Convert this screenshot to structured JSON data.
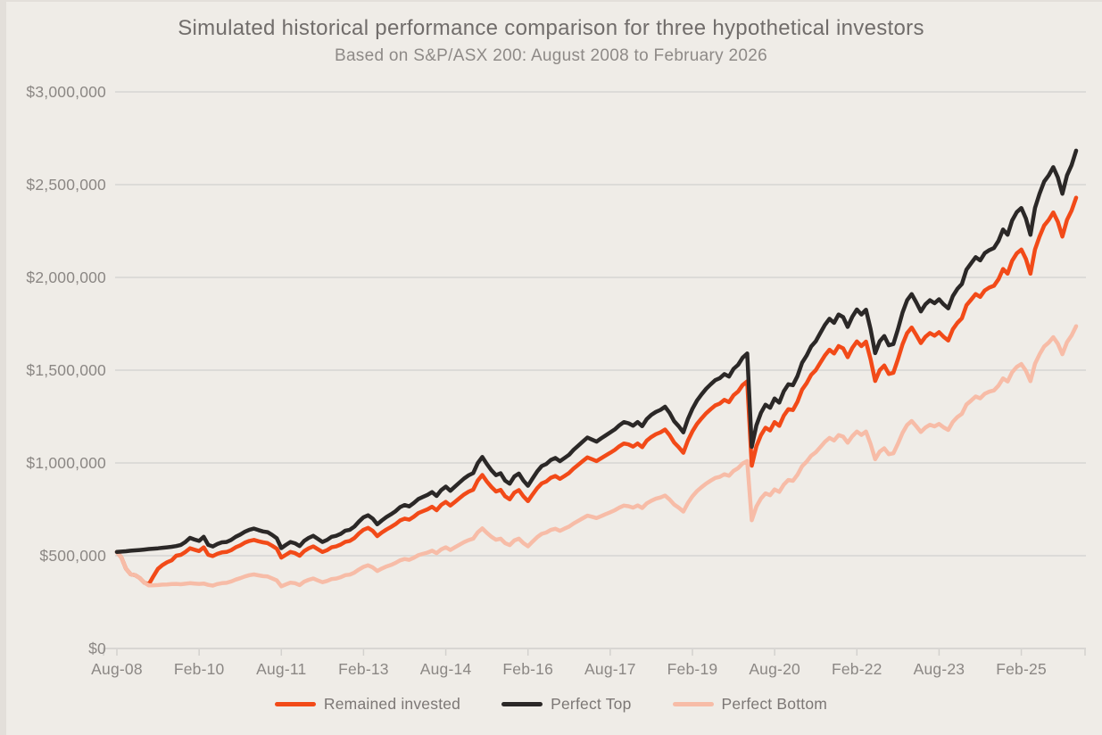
{
  "title": "Simulated historical performance comparison for three hypothetical investors",
  "subtitle": "Based on S&P/ASX 200: August 2008 to February 2026",
  "colors": {
    "background": "#efece7",
    "gridline": "#dcdbd8",
    "axis_text": "#8b8784",
    "title_text": "#716d6b"
  },
  "chart_data": {
    "type": "line",
    "title": "Simulated historical performance comparison for three hypothetical investors",
    "subtitle": "Based on S&P/ASX 200: August 2008 to February 2026",
    "x_unit": "months since Aug-2008, one point per month",
    "n_points": 211,
    "x_range_labels": [
      "Aug-08",
      "Feb-26"
    ],
    "ylim": [
      0,
      3000000
    ],
    "values_unit": "AUD",
    "grid": "horizontal",
    "legend_position": "bottom",
    "x_ticks": [
      {
        "month": 0,
        "label": "Aug-08"
      },
      {
        "month": 18,
        "label": "Feb-10"
      },
      {
        "month": 36,
        "label": "Aug-11"
      },
      {
        "month": 54,
        "label": "Feb-13"
      },
      {
        "month": 72,
        "label": "Aug-14"
      },
      {
        "month": 90,
        "label": "Feb-16"
      },
      {
        "month": 108,
        "label": "Aug-17"
      },
      {
        "month": 126,
        "label": "Feb-19"
      },
      {
        "month": 144,
        "label": "Aug-20"
      },
      {
        "month": 162,
        "label": "Feb-22"
      },
      {
        "month": 180,
        "label": "Aug-23"
      },
      {
        "month": 198,
        "label": "Feb-25"
      }
    ],
    "y_ticks": [
      {
        "value": 0,
        "label": "$0"
      },
      {
        "value": 500000,
        "label": "$500,000"
      },
      {
        "value": 1000000,
        "label": "$1,000,000"
      },
      {
        "value": 1500000,
        "label": "$1,500,000"
      },
      {
        "value": 2000000,
        "label": "$2,000,000"
      },
      {
        "value": 2500000,
        "label": "$2,500,000"
      },
      {
        "value": 3000000,
        "label": "$3,000,000"
      }
    ],
    "series": [
      {
        "name": "Remained invested",
        "color": "#f24a18",
        "values": [
          520000,
          490000,
          430000,
          400000,
          395000,
          380000,
          355000,
          346000,
          390000,
          430000,
          450000,
          465000,
          475000,
          500000,
          505000,
          520000,
          540000,
          532000,
          525000,
          545000,
          505000,
          498000,
          510000,
          518000,
          520000,
          530000,
          545000,
          556000,
          570000,
          580000,
          585000,
          578000,
          572000,
          568000,
          554000,
          538000,
          490000,
          505000,
          520000,
          514000,
          500000,
          525000,
          540000,
          550000,
          535000,
          520000,
          530000,
          545000,
          550000,
          560000,
          575000,
          580000,
          595000,
          620000,
          640000,
          650000,
          634000,
          606000,
          625000,
          641000,
          655000,
          670000,
          690000,
          700000,
          694000,
          710000,
          730000,
          740000,
          750000,
          764000,
          745000,
          774000,
          790000,
          770000,
          790000,
          810000,
          830000,
          845000,
          856000,
          905000,
          935000,
          900000,
          870000,
          846000,
          855000,
          820000,
          804000,
          840000,
          854000,
          820000,
          794000,
          830000,
          864000,
          890000,
          900000,
          920000,
          930000,
          914000,
          930000,
          946000,
          970000,
          990000,
          1010000,
          1030000,
          1020000,
          1010000,
          1025000,
          1040000,
          1055000,
          1070000,
          1090000,
          1105000,
          1100000,
          1088000,
          1105000,
          1085000,
          1120000,
          1140000,
          1155000,
          1165000,
          1180000,
          1150000,
          1110000,
          1085000,
          1055000,
          1120000,
          1170000,
          1210000,
          1240000,
          1268000,
          1290000,
          1310000,
          1320000,
          1340000,
          1328000,
          1365000,
          1385000,
          1420000,
          1440000,
          985000,
          1090000,
          1150000,
          1190000,
          1175000,
          1220000,
          1200000,
          1255000,
          1290000,
          1285000,
          1330000,
          1395000,
          1430000,
          1475000,
          1500000,
          1540000,
          1580000,
          1610000,
          1590000,
          1630000,
          1618000,
          1570000,
          1620000,
          1655000,
          1630000,
          1654000,
          1560000,
          1442000,
          1500000,
          1525000,
          1480000,
          1486000,
          1560000,
          1640000,
          1700000,
          1730000,
          1690000,
          1646000,
          1680000,
          1700000,
          1686000,
          1705000,
          1680000,
          1660000,
          1720000,
          1755000,
          1780000,
          1850000,
          1880000,
          1910000,
          1895000,
          1930000,
          1945000,
          1955000,
          1990000,
          2045000,
          2020000,
          2090000,
          2130000,
          2150000,
          2100000,
          2020000,
          2150000,
          2220000,
          2280000,
          2310000,
          2350000,
          2300000,
          2220000,
          2310000,
          2360000,
          2430000
        ]
      },
      {
        "name": "Perfect Top",
        "color": "#2b2827",
        "values": [
          520000,
          522000,
          524000,
          527000,
          529000,
          531000,
          533000,
          536000,
          538000,
          540000,
          543000,
          545000,
          548000,
          552000,
          558000,
          574000,
          596000,
          587000,
          580000,
          602000,
          558000,
          550000,
          563000,
          572000,
          574000,
          585000,
          602000,
          614000,
          629000,
          640000,
          646000,
          638000,
          631000,
          627000,
          612000,
          594000,
          541000,
          558000,
          574000,
          567000,
          552000,
          580000,
          596000,
          607000,
          591000,
          574000,
          585000,
          602000,
          607000,
          618000,
          635000,
          640000,
          657000,
          684000,
          707000,
          718000,
          700000,
          669000,
          690000,
          708000,
          723000,
          740000,
          762000,
          773000,
          766000,
          784000,
          806000,
          817000,
          828000,
          843000,
          822000,
          854000,
          872000,
          850000,
          872000,
          894000,
          916000,
          933000,
          945000,
          999000,
          1032000,
          994000,
          960000,
          934000,
          944000,
          905000,
          888000,
          927000,
          943000,
          905000,
          877000,
          916000,
          954000,
          983000,
          994000,
          1016000,
          1027000,
          1009000,
          1027000,
          1044000,
          1071000,
          1093000,
          1115000,
          1137000,
          1126000,
          1115000,
          1132000,
          1148000,
          1165000,
          1181000,
          1203000,
          1220000,
          1214000,
          1201000,
          1220000,
          1198000,
          1236000,
          1259000,
          1275000,
          1286000,
          1303000,
          1270000,
          1225000,
          1198000,
          1165000,
          1236000,
          1292000,
          1336000,
          1369000,
          1400000,
          1424000,
          1446000,
          1457000,
          1479000,
          1466000,
          1507000,
          1529000,
          1568000,
          1590000,
          1087000,
          1203000,
          1270000,
          1314000,
          1297000,
          1347000,
          1325000,
          1386000,
          1424000,
          1419000,
          1468000,
          1540000,
          1579000,
          1628000,
          1656000,
          1700000,
          1744000,
          1777000,
          1755000,
          1800000,
          1786000,
          1733000,
          1788000,
          1827000,
          1800000,
          1826000,
          1722000,
          1592000,
          1656000,
          1684000,
          1634000,
          1641000,
          1722000,
          1811000,
          1877000,
          1910000,
          1866000,
          1817000,
          1855000,
          1877000,
          1861000,
          1882000,
          1855000,
          1833000,
          1899000,
          1938000,
          1965000,
          2042000,
          2076000,
          2109000,
          2092000,
          2131000,
          2147000,
          2158000,
          2197000,
          2258000,
          2230000,
          2307000,
          2352000,
          2374000,
          2318000,
          2230000,
          2374000,
          2451000,
          2517000,
          2550000,
          2594000,
          2539000,
          2451000,
          2550000,
          2605000,
          2683000
        ]
      },
      {
        "name": "Perfect Bottom",
        "color": "#f7bca7",
        "values": [
          520000,
          490000,
          430000,
          400000,
          395000,
          380000,
          355000,
          340000,
          341000,
          342000,
          344000,
          345000,
          347000,
          348000,
          346000,
          349000,
          352000,
          350000,
          348000,
          350000,
          343000,
          339000,
          347000,
          352000,
          354000,
          361000,
          371000,
          379000,
          388000,
          395000,
          399000,
          394000,
          390000,
          388000,
          378000,
          367000,
          335000,
          345000,
          355000,
          352000,
          342000,
          360000,
          370000,
          377000,
          367000,
          357000,
          364000,
          374000,
          377000,
          384000,
          395000,
          398000,
          409000,
          426000,
          440000,
          448000,
          437000,
          418000,
          431000,
          442000,
          450000,
          461000,
          475000,
          482000,
          478000,
          489000,
          503000,
          510000,
          517000,
          527000,
          514000,
          534000,
          545000,
          531000,
          545000,
          559000,
          573000,
          584000,
          592000,
          626000,
          647000,
          623000,
          602000,
          586000,
          592000,
          568000,
          557000,
          582000,
          592000,
          568000,
          551000,
          576000,
          600000,
          618000,
          625000,
          639000,
          645000,
          634000,
          646000,
          657000,
          674000,
          688000,
          702000,
          716000,
          710000,
          703000,
          713000,
          724000,
          734000,
          745000,
          759000,
          770000,
          767000,
          759000,
          771000,
          757000,
          782000,
          796000,
          807000,
          814000,
          824000,
          803000,
          776000,
          759000,
          738000,
          784000,
          820000,
          848000,
          869000,
          889000,
          905000,
          919000,
          925000,
          939000,
          931000,
          957000,
          972000,
          997000,
          1010000,
          691000,
          765000,
          808000,
          836000,
          826000,
          857000,
          844000,
          883000,
          908000,
          904000,
          936000,
          982000,
          1007000,
          1039000,
          1057000,
          1085000,
          1114000,
          1135000,
          1121000,
          1150000,
          1142000,
          1109000,
          1144000,
          1169000,
          1151000,
          1169000,
          1103000,
          1020000,
          1061000,
          1079000,
          1047000,
          1052000,
          1105000,
          1162000,
          1205000,
          1226000,
          1198000,
          1167000,
          1191000,
          1206000,
          1197000,
          1210000,
          1192000,
          1178000,
          1221000,
          1247000,
          1265000,
          1315000,
          1336000,
          1358000,
          1348000,
          1373000,
          1384000,
          1391000,
          1417000,
          1456000,
          1439000,
          1489000,
          1518000,
          1533000,
          1497000,
          1441000,
          1534000,
          1585000,
          1628000,
          1649000,
          1678000,
          1643000,
          1586000,
          1651000,
          1687000,
          1737000
        ]
      }
    ],
    "draw_order": [
      0,
      2,
      1
    ]
  },
  "legend": {
    "items": [
      {
        "label": "Remained invested"
      },
      {
        "label": "Perfect Top"
      },
      {
        "label": "Perfect Bottom"
      }
    ]
  }
}
